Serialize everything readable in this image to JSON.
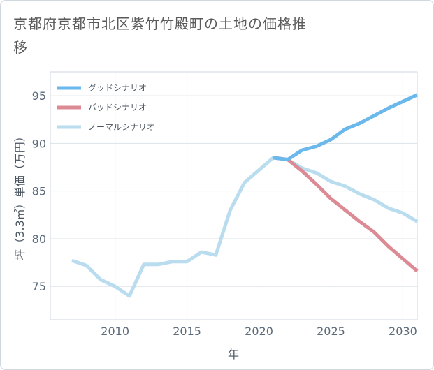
{
  "title": "京都府京都市北区紫竹竹殿町の土地の価格推移",
  "chart_data": {
    "type": "line",
    "xlabel": "年",
    "ylabel": "坪（3.3㎡）単価（万円）",
    "xlim": [
      2005.5,
      2031
    ],
    "ylim": [
      71.5,
      97.5
    ],
    "xticks": [
      2010,
      2015,
      2020,
      2025,
      2030
    ],
    "yticks": [
      75,
      80,
      85,
      90,
      95
    ],
    "grid": true,
    "legend_position": "top-left",
    "series": [
      {
        "name": "グッドシナリオ",
        "color": "#6bb8ec",
        "x": [
          2021,
          2022,
          2023,
          2024,
          2025,
          2026,
          2027,
          2028,
          2029,
          2030,
          2031
        ],
        "values": [
          88.5,
          88.3,
          89.3,
          89.7,
          90.4,
          91.5,
          92.1,
          92.9,
          93.7,
          94.4,
          95.1
        ]
      },
      {
        "name": "バッドシナリオ",
        "color": "#dc8a93",
        "x": [
          2021,
          2022,
          2023,
          2024,
          2025,
          2026,
          2027,
          2028,
          2029,
          2030,
          2031
        ],
        "values": [
          88.5,
          88.3,
          87.1,
          85.7,
          84.2,
          83.0,
          81.8,
          80.7,
          79.2,
          77.9,
          76.6
        ]
      },
      {
        "name": "ノーマルシナリオ",
        "color": "#b9ddef",
        "x": [
          2007,
          2008,
          2009,
          2010,
          2011,
          2012,
          2013,
          2014,
          2015,
          2016,
          2017,
          2018,
          2019,
          2020,
          2021,
          2022,
          2023,
          2024,
          2025,
          2026,
          2027,
          2028,
          2029,
          2030,
          2031
        ],
        "values": [
          77.7,
          77.2,
          75.7,
          75.0,
          74.0,
          77.3,
          77.3,
          77.6,
          77.6,
          78.6,
          78.3,
          83.0,
          85.9,
          87.2,
          88.5,
          88.3,
          87.4,
          86.9,
          86.0,
          85.5,
          84.7,
          84.1,
          83.2,
          82.7,
          81.8
        ]
      }
    ]
  }
}
